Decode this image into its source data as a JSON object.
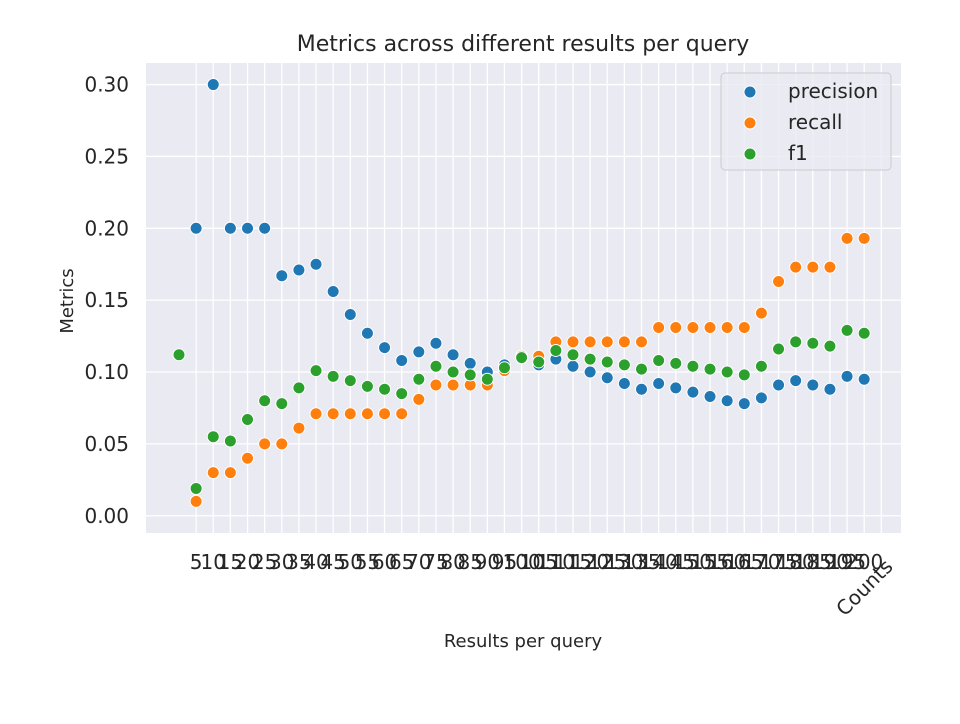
{
  "chart_data": {
    "type": "scatter",
    "title": "Metrics across different results per query",
    "xlabel": "Results per query",
    "ylabel": "Metrics",
    "ylim": [
      -0.012,
      0.315
    ],
    "yticks": [
      0.0,
      0.05,
      0.1,
      0.15,
      0.2,
      0.25,
      0.3
    ],
    "ytick_labels": [
      "0.00",
      "0.05",
      "0.10",
      "0.15",
      "0.20",
      "0.25",
      "0.30"
    ],
    "categories": [
      "Counts",
      "5",
      "10",
      "15",
      "20",
      "25",
      "30",
      "35",
      "40",
      "45",
      "50",
      "55",
      "60",
      "65",
      "70",
      "75",
      "80",
      "85",
      "90",
      "95",
      "100",
      "105",
      "110",
      "115",
      "120",
      "125",
      "130",
      "135",
      "140",
      "145",
      "150",
      "155",
      "160",
      "165",
      "170",
      "175",
      "180",
      "185",
      "190",
      "195",
      "200"
    ],
    "tick_labels": [
      "5",
      "10",
      "15",
      "20",
      "25",
      "30",
      "35",
      "40",
      "45",
      "50",
      "55",
      "60",
      "65",
      "70",
      "75",
      "80",
      "85",
      "90",
      "95",
      "100",
      "105",
      "110",
      "115",
      "120",
      "125",
      "130",
      "135",
      "140",
      "145",
      "150",
      "155",
      "160",
      "165",
      "170",
      "175",
      "180",
      "185",
      "190",
      "195",
      "200"
    ],
    "counts_label": "Counts",
    "grid": true,
    "legend_position": "top-right",
    "series": [
      {
        "name": "precision",
        "color": "#1f77b4",
        "values": [
          null,
          0.2,
          0.3,
          0.2,
          0.2,
          0.2,
          0.167,
          0.171,
          0.175,
          0.156,
          0.14,
          0.127,
          0.117,
          0.108,
          0.114,
          0.12,
          0.112,
          0.106,
          0.1,
          0.105,
          0.11,
          0.105,
          0.109,
          0.104,
          0.1,
          0.096,
          0.092,
          0.088,
          0.092,
          0.089,
          0.086,
          0.083,
          0.08,
          0.078,
          0.082,
          0.091,
          0.094,
          0.091,
          0.088,
          0.097,
          0.095
        ]
      },
      {
        "name": "recall",
        "color": "#ff7f0e",
        "values": [
          null,
          0.01,
          0.03,
          0.03,
          0.04,
          0.05,
          0.05,
          0.061,
          0.071,
          0.071,
          0.071,
          0.071,
          0.071,
          0.071,
          0.081,
          0.091,
          0.091,
          0.091,
          0.091,
          0.101,
          0.111,
          0.111,
          0.121,
          0.121,
          0.121,
          0.121,
          0.121,
          0.121,
          0.131,
          0.131,
          0.131,
          0.131,
          0.131,
          0.131,
          0.141,
          0.163,
          0.173,
          0.173,
          0.173,
          0.193,
          0.193
        ]
      },
      {
        "name": "f1",
        "color": "#2ca02c",
        "values": [
          0.112,
          0.019,
          0.055,
          0.052,
          0.067,
          0.08,
          0.078,
          0.089,
          0.101,
          0.097,
          0.094,
          0.09,
          0.088,
          0.085,
          0.095,
          0.104,
          0.1,
          0.098,
          0.095,
          0.103,
          0.11,
          0.107,
          0.115,
          0.112,
          0.109,
          0.107,
          0.105,
          0.102,
          0.108,
          0.106,
          0.104,
          0.102,
          0.1,
          0.098,
          0.104,
          0.116,
          0.121,
          0.12,
          0.118,
          0.129,
          0.127
        ]
      }
    ]
  }
}
